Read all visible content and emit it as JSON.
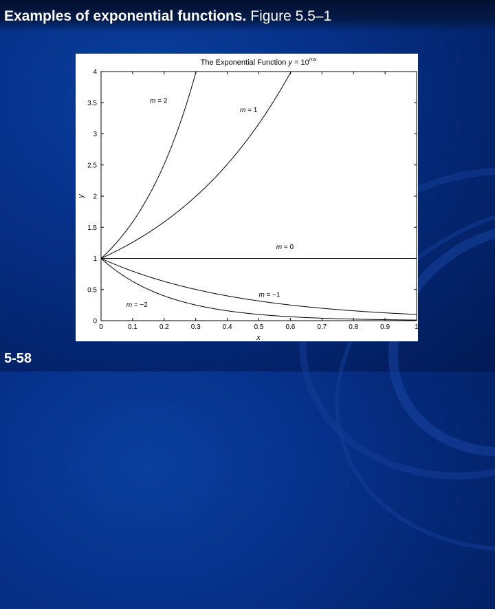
{
  "slide": {
    "title_bold": "Examples of exponential functions.",
    "title_rest": "Figure 5.5–1",
    "slide_number": "5-58"
  },
  "chart_data": {
    "type": "line",
    "title_prefix": "The Exponential Function ",
    "title_eq_lhs": "y",
    "title_eq_base": " = 10",
    "title_eq_exp": "mx",
    "xlabel": "x",
    "ylabel": "y",
    "xlim": [
      0,
      1
    ],
    "ylim": [
      0,
      4
    ],
    "xticks": [
      0,
      0.1,
      0.2,
      0.3,
      0.4,
      0.5,
      0.6,
      0.7,
      0.8,
      0.9,
      1
    ],
    "xtick_labels": [
      "0",
      "0.1",
      "0.2",
      "0.3",
      "0.4",
      "0.5",
      "0.6",
      "0.7",
      "0.8",
      "0.9",
      "1"
    ],
    "yticks": [
      0,
      0.5,
      1,
      1.5,
      2,
      2.5,
      3,
      3.5,
      4
    ],
    "ytick_labels": [
      "0",
      "0.5",
      "1",
      "1.5",
      "2",
      "2.5",
      "3",
      "3.5",
      "4"
    ],
    "grid": false,
    "legend": "none",
    "line_color": "#000000",
    "series": [
      {
        "name": "m = 2",
        "m": 2,
        "x": [
          0,
          0.05,
          0.1,
          0.15,
          0.2,
          0.25,
          0.3
        ],
        "y": [
          1,
          1.259,
          1.585,
          1.995,
          2.512,
          3.162,
          3.981
        ]
      },
      {
        "name": "m = 1",
        "m": 1,
        "x": [
          0,
          0.1,
          0.2,
          0.3,
          0.4,
          0.5,
          0.6
        ],
        "y": [
          1,
          1.259,
          1.585,
          1.995,
          2.512,
          3.162,
          3.981
        ]
      },
      {
        "name": "m = 0",
        "m": 0,
        "x": [
          0,
          0.5,
          1
        ],
        "y": [
          1,
          1,
          1
        ]
      },
      {
        "name": "m = −1",
        "m": -1,
        "x": [
          0,
          0.1,
          0.2,
          0.3,
          0.4,
          0.5,
          0.6,
          0.7,
          0.8,
          0.9,
          1
        ],
        "y": [
          1,
          0.794,
          0.631,
          0.501,
          0.398,
          0.316,
          0.251,
          0.2,
          0.158,
          0.126,
          0.1
        ]
      },
      {
        "name": "m = −2",
        "m": -2,
        "x": [
          0,
          0.1,
          0.2,
          0.3,
          0.4,
          0.5,
          0.6,
          0.7,
          0.8,
          0.9,
          1
        ],
        "y": [
          1,
          0.631,
          0.398,
          0.251,
          0.158,
          0.1,
          0.063,
          0.04,
          0.025,
          0.016,
          0.01
        ]
      }
    ],
    "annotations": [
      {
        "text": "m = 2",
        "x": 0.155,
        "y": 3.5
      },
      {
        "text": "m = 1",
        "x": 0.44,
        "y": 3.35
      },
      {
        "text": "m = 0",
        "x": 0.555,
        "y": 1.15
      },
      {
        "text": "m = −1",
        "x": 0.5,
        "y": 0.38
      },
      {
        "text": "m = −2",
        "x": 0.08,
        "y": 0.22
      }
    ]
  }
}
